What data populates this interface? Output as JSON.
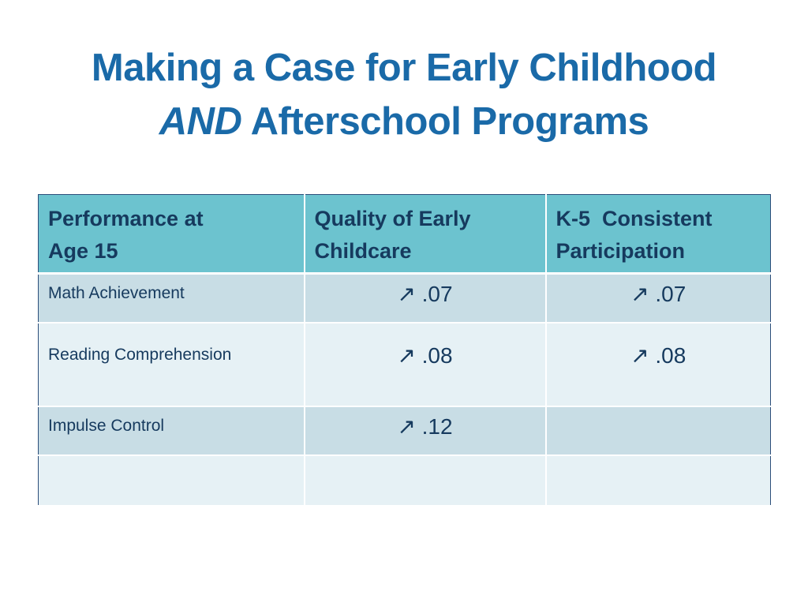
{
  "title": {
    "line1": "Making a Case for Early Childhood",
    "line2_emphasis": "AND",
    "line2_rest": " Afterschool Programs"
  },
  "table": {
    "headers": [
      [
        "Performance at",
        "Age 15"
      ],
      [
        "Quality of Early",
        "Childcare"
      ],
      [
        "K-5  Consistent",
        "Participation"
      ]
    ],
    "rows": [
      {
        "label": "Math Achievement",
        "early": "↗ .07",
        "k5": "↗ .07"
      },
      {
        "label": "Reading Comprehension",
        "early": "↗ .08",
        "k5": "↗ .08"
      },
      {
        "label": "Impulse Control",
        "early": "↗ .12",
        "k5": ""
      },
      {
        "label": "",
        "early": "",
        "k5": ""
      }
    ]
  }
}
